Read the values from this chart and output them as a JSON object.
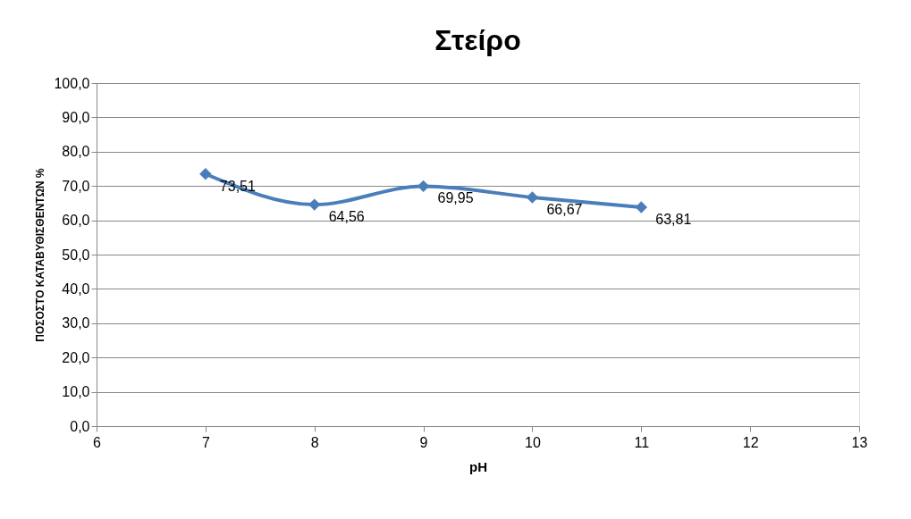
{
  "chart_data": {
    "type": "line",
    "title": "Στείρο",
    "xlabel": "pH",
    "ylabel": "ΠΟΣΟΣΤΟ ΚΑΤΑΒΥΘΙΣΘΕΝΤΩΝ %",
    "x": [
      7,
      8,
      9,
      10,
      11
    ],
    "series": [
      {
        "color": "#4a7ebb",
        "values": [
          73.51,
          64.56,
          69.95,
          66.67,
          63.81
        ],
        "value_labels": [
          "73,51",
          "64,56",
          "69,95",
          "66,67",
          "63,81"
        ]
      }
    ],
    "xlim": [
      6,
      13
    ],
    "xticks": [
      6,
      7,
      8,
      9,
      10,
      11,
      12,
      13
    ],
    "ylim": [
      0,
      100
    ],
    "yticks": [
      {
        "value": 0,
        "label": "0,0"
      },
      {
        "value": 10,
        "label": "10,0"
      },
      {
        "value": 20,
        "label": "20,0"
      },
      {
        "value": 30,
        "label": "30,0"
      },
      {
        "value": 40,
        "label": "40,0"
      },
      {
        "value": 50,
        "label": "50,0"
      },
      {
        "value": 60,
        "label": "60,0"
      },
      {
        "value": 70,
        "label": "70,0"
      },
      {
        "value": 80,
        "label": "80,0"
      },
      {
        "value": 90,
        "label": "90,0"
      },
      {
        "value": 100,
        "label": "100,0"
      }
    ],
    "grid": "y",
    "marker": "diamond",
    "line_style": "solid"
  }
}
